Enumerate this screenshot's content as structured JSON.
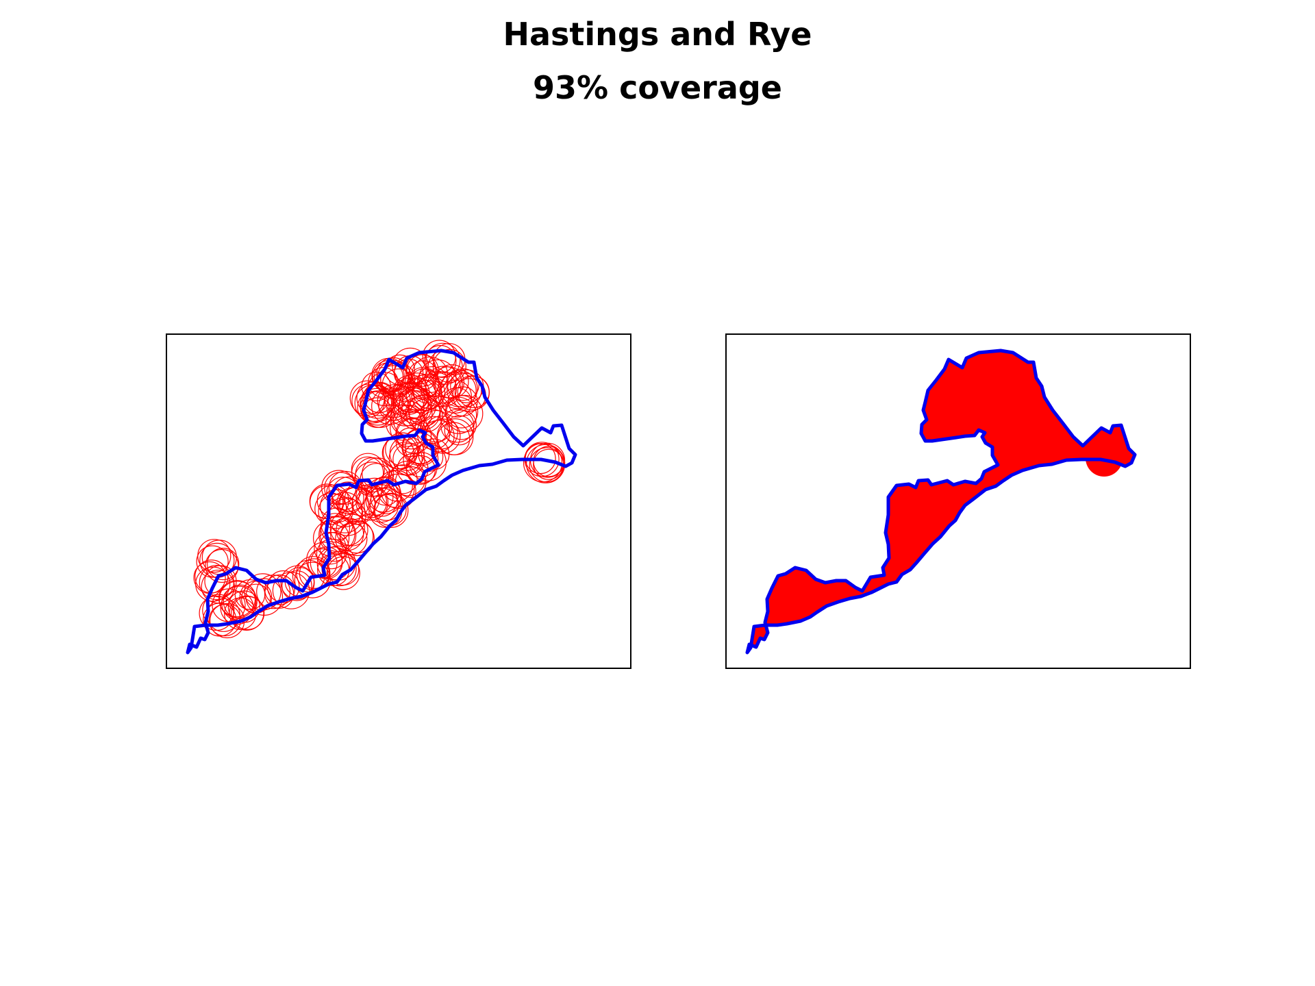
{
  "title": "Hastings and Rye",
  "subtitle": "93% coverage",
  "colors": {
    "boundary": "#0000ee",
    "coverage": "#ff0000",
    "frame": "#000000",
    "background": "#ffffff"
  },
  "panels": [
    {
      "type": "circle-outlines"
    },
    {
      "type": "filled-coverage"
    }
  ]
}
